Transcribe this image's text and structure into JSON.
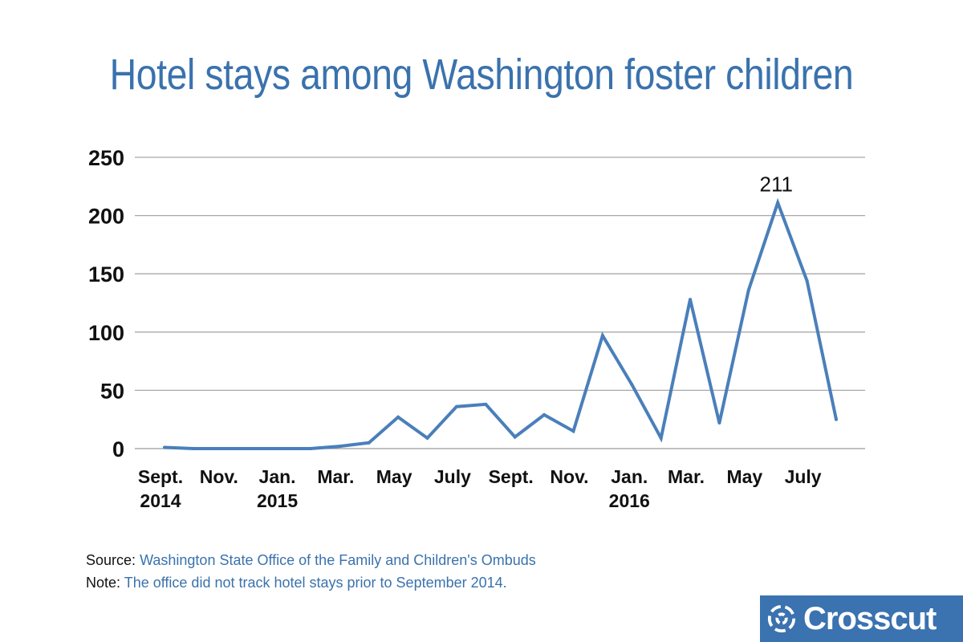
{
  "title": "Hotel stays among Washington foster children",
  "chart_data": {
    "type": "line",
    "title": "Hotel stays among Washington foster children",
    "xlabel": "",
    "ylabel": "",
    "ylim": [
      0,
      250
    ],
    "yticks": [
      0,
      50,
      100,
      150,
      200,
      250
    ],
    "grid": true,
    "months": [
      "Sep 2014",
      "Oct 2014",
      "Nov 2014",
      "Dec 2014",
      "Jan 2015",
      "Feb 2015",
      "Mar 2015",
      "Apr 2015",
      "May 2015",
      "Jun 2015",
      "Jul 2015",
      "Aug 2015",
      "Sep 2015",
      "Oct 2015",
      "Nov 2015",
      "Dec 2015",
      "Jan 2016",
      "Feb 2016",
      "Mar 2016",
      "Apr 2016",
      "May 2016",
      "Jun 2016",
      "Jul 2016",
      "Aug 2016"
    ],
    "series": [
      {
        "name": "Hotel stays",
        "color": "#4a7fba",
        "values": [
          1,
          0,
          0,
          0,
          0,
          0,
          2,
          5,
          27,
          9,
          36,
          38,
          10,
          29,
          15,
          97,
          55,
          9,
          128,
          22,
          136,
          211,
          144,
          25
        ]
      }
    ],
    "x_tick_labels": [
      {
        "index": 0,
        "lines": [
          "Sept.",
          "2014"
        ]
      },
      {
        "index": 2,
        "lines": [
          "Nov."
        ]
      },
      {
        "index": 4,
        "lines": [
          "Jan.",
          "2015"
        ]
      },
      {
        "index": 6,
        "lines": [
          "Mar."
        ]
      },
      {
        "index": 8,
        "lines": [
          "May"
        ]
      },
      {
        "index": 10,
        "lines": [
          "July"
        ]
      },
      {
        "index": 12,
        "lines": [
          "Sept."
        ]
      },
      {
        "index": 14,
        "lines": [
          "Nov."
        ]
      },
      {
        "index": 16,
        "lines": [
          "Jan.",
          "2016"
        ]
      },
      {
        "index": 18,
        "lines": [
          "Mar."
        ]
      },
      {
        "index": 20,
        "lines": [
          "May"
        ]
      },
      {
        "index": 22,
        "lines": [
          "July"
        ]
      }
    ],
    "annotations": [
      {
        "index": 21,
        "text": "211"
      }
    ]
  },
  "notes": {
    "source_label": "Source:",
    "source_value": "Washington State Office of the Family and Children's Ombuds",
    "note_label": "Note:",
    "note_value": "The office did not track hotel stays prior to September 2014."
  },
  "logo": {
    "text": "Crosscut",
    "color": "#3b72b0"
  }
}
